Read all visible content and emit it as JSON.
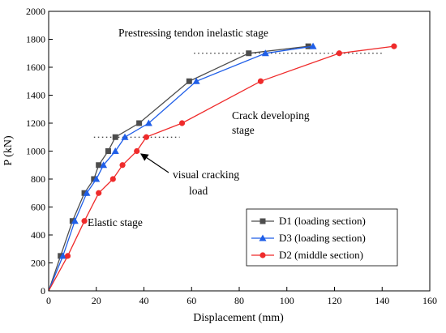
{
  "chart_data": {
    "type": "line",
    "xlabel": "Displacement (mm)",
    "ylabel": "P (kN)",
    "xlim": [
      0,
      160
    ],
    "ylim": [
      0,
      2000
    ],
    "xticks": [
      0,
      20,
      40,
      60,
      80,
      100,
      120,
      140,
      160
    ],
    "yticks": [
      0,
      200,
      400,
      600,
      800,
      1000,
      1200,
      1400,
      1600,
      1800,
      2000
    ],
    "grid": false,
    "legend_position": "bottom-right",
    "series": [
      {
        "name": "D1 (loading section)",
        "color": "#4d4d4d",
        "marker": "square",
        "points": [
          [
            0,
            0
          ],
          [
            5,
            250
          ],
          [
            10,
            500
          ],
          [
            15,
            700
          ],
          [
            19,
            800
          ],
          [
            21,
            900
          ],
          [
            25,
            1000
          ],
          [
            28,
            1100
          ],
          [
            38,
            1200
          ],
          [
            59,
            1500
          ],
          [
            84,
            1700
          ],
          [
            109,
            1750
          ]
        ]
      },
      {
        "name": "D3 (loading section)",
        "color": "#1f5ee8",
        "marker": "triangle",
        "points": [
          [
            0,
            0
          ],
          [
            6,
            250
          ],
          [
            11,
            500
          ],
          [
            16,
            700
          ],
          [
            20,
            800
          ],
          [
            23,
            900
          ],
          [
            28,
            1000
          ],
          [
            32,
            1100
          ],
          [
            42,
            1200
          ],
          [
            62,
            1500
          ],
          [
            91,
            1700
          ],
          [
            111,
            1750
          ]
        ]
      },
      {
        "name": "D2 (middle section)",
        "color": "#ef2b2b",
        "marker": "circle",
        "points": [
          [
            0,
            0
          ],
          [
            8,
            250
          ],
          [
            15,
            500
          ],
          [
            21,
            700
          ],
          [
            27,
            800
          ],
          [
            31,
            900
          ],
          [
            37,
            1000
          ],
          [
            41,
            1100
          ],
          [
            56,
            1200
          ],
          [
            89,
            1500
          ],
          [
            122,
            1700
          ],
          [
            145,
            1750
          ]
        ]
      }
    ],
    "reference_lines": [
      {
        "y": 1100,
        "x_from": 19,
        "x_to": 55
      },
      {
        "y": 1700,
        "x_from": 61,
        "x_to": 140
      }
    ],
    "annotations": [
      {
        "text": "Prestressing tendon inelastic stage"
      },
      {
        "text": "Crack developing"
      },
      {
        "text": "stage"
      },
      {
        "text": "visual cracking"
      },
      {
        "text": "load"
      },
      {
        "text": "Elastic stage"
      }
    ]
  }
}
